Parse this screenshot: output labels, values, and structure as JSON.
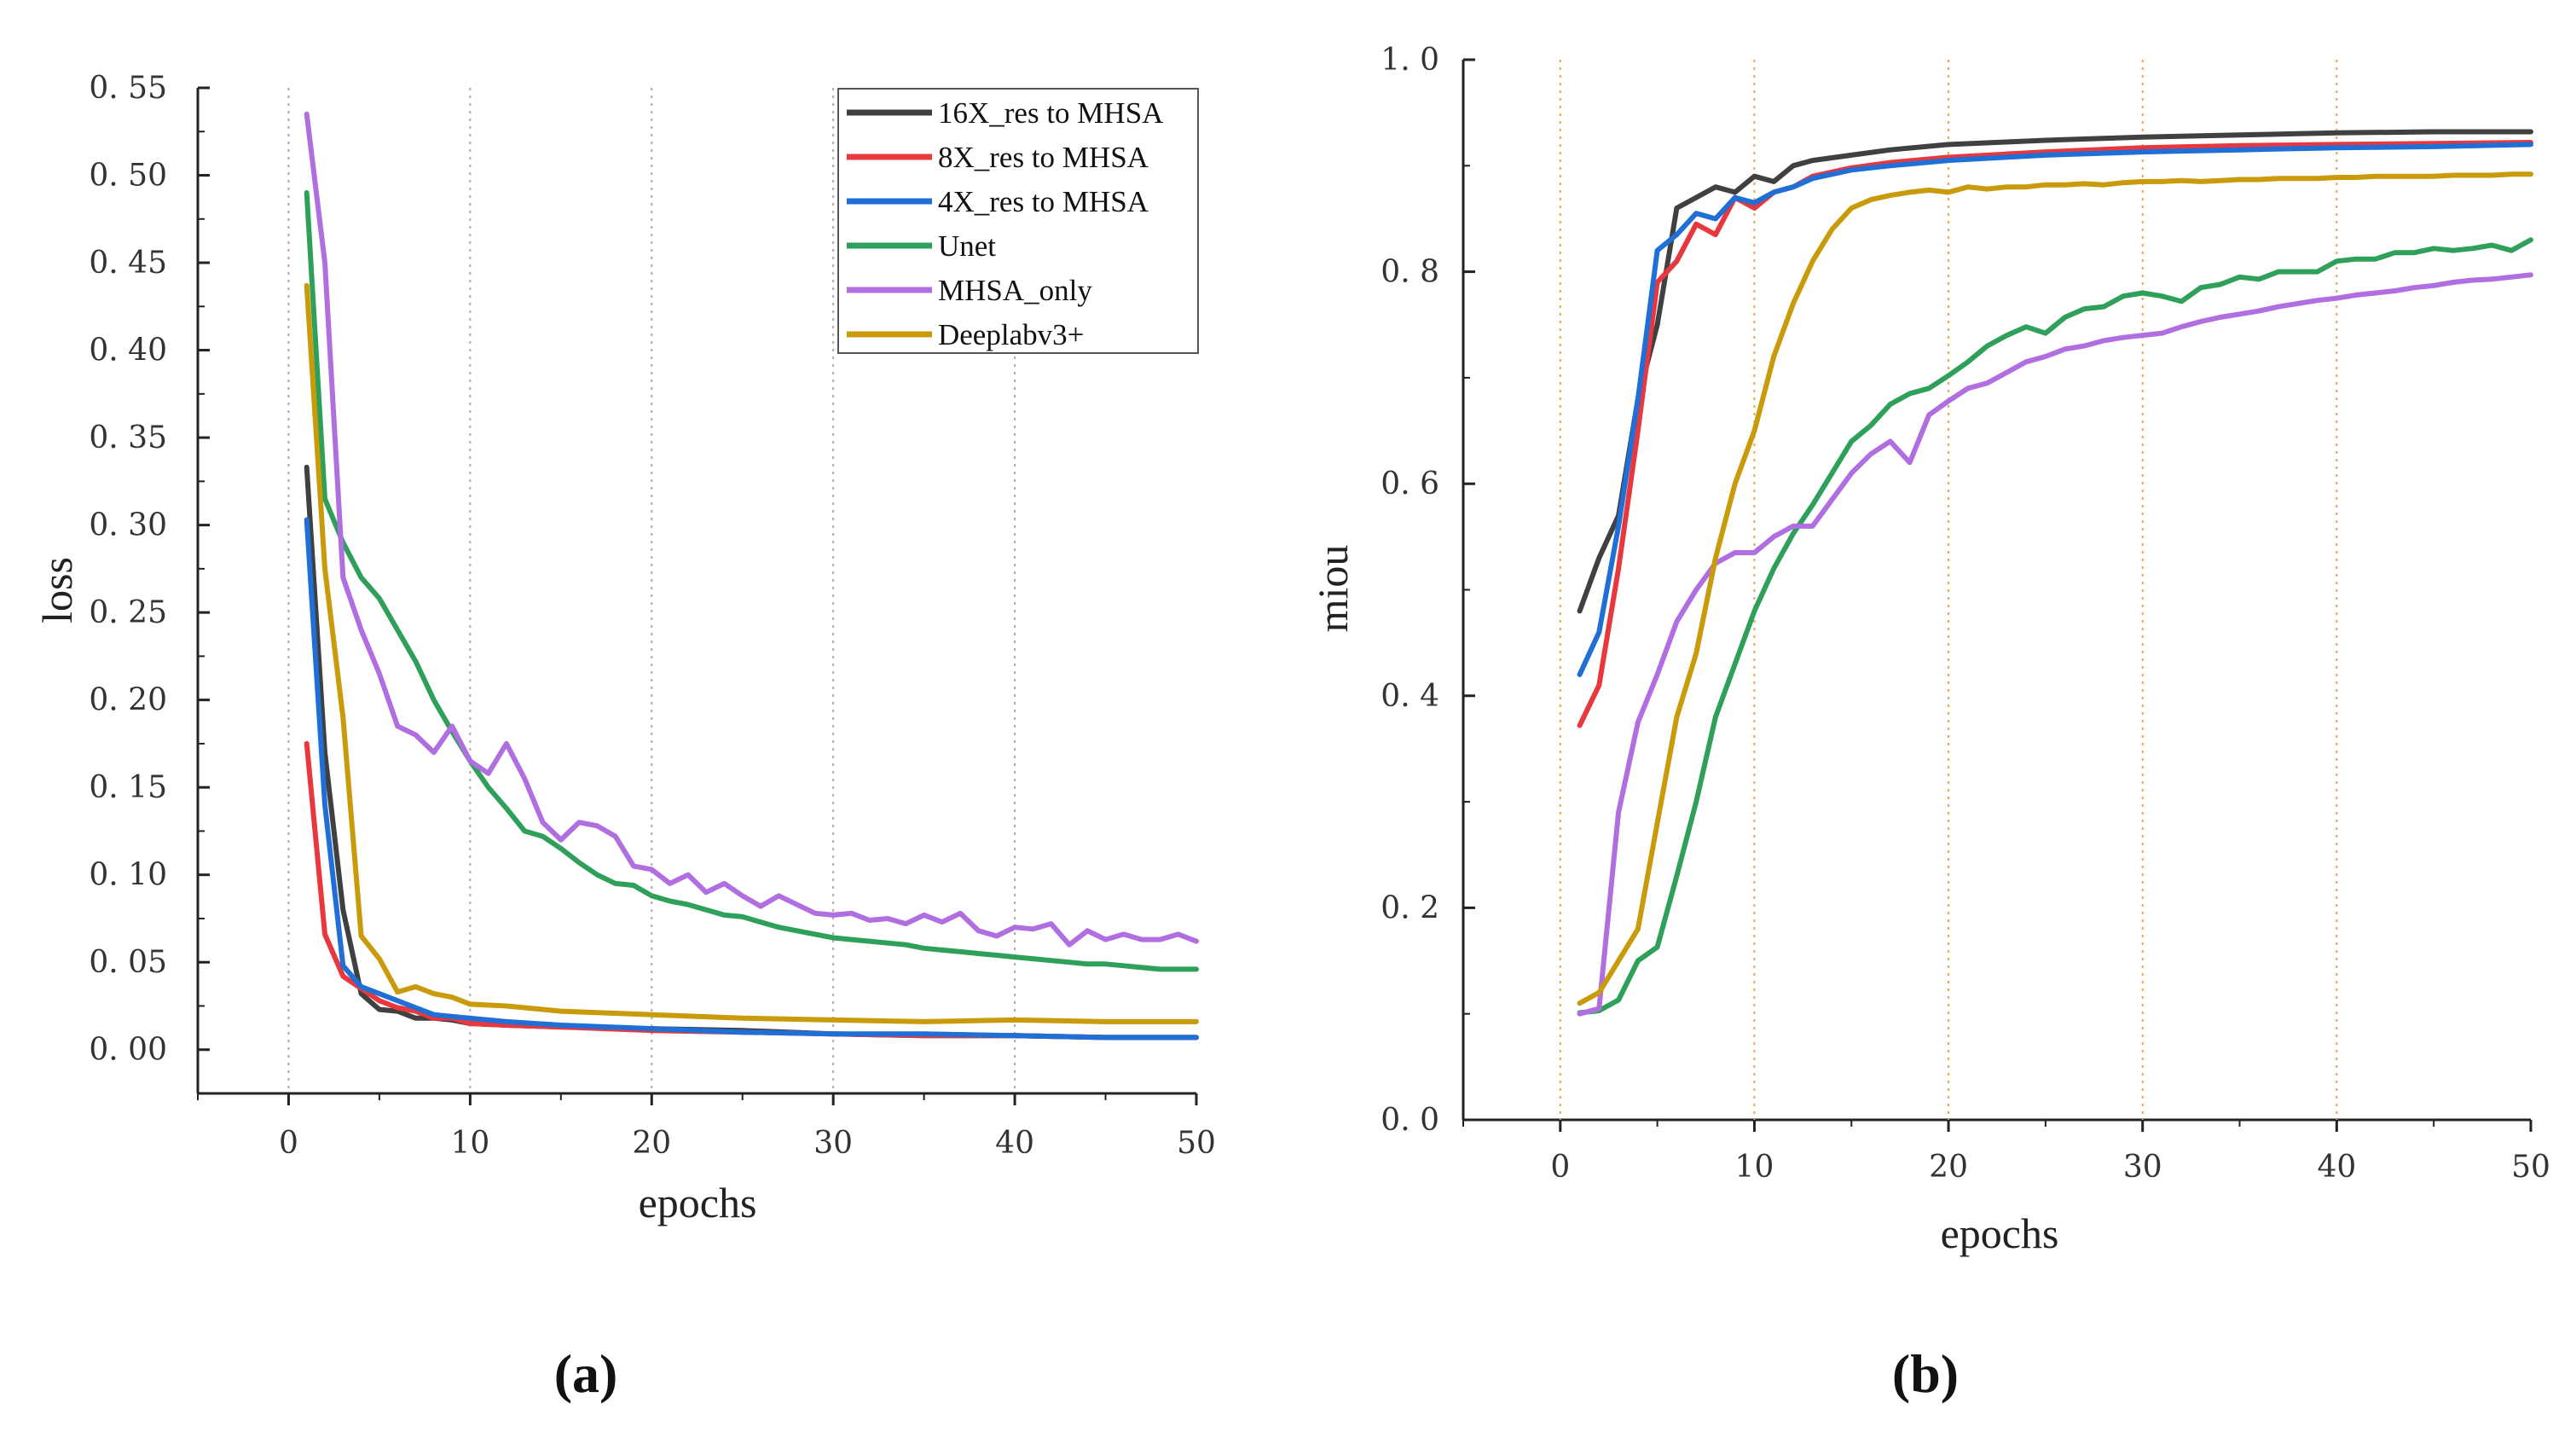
{
  "colors": {
    "16X_res to MHSA": "#404040",
    "8X_res to MHSA": "#e8383d",
    "4X_res to MHSA": "#1f6fd6",
    "Unet": "#2ea05a",
    "MHSA_only": "#b06ee0",
    "Deeplabv3+": "#c99a0a"
  },
  "chart_data": [
    {
      "type": "line",
      "panel_label": "(a)",
      "xlabel": "epochs",
      "ylabel": "loss",
      "xlim": [
        -5,
        50
      ],
      "ylim": [
        -0.025,
        0.55
      ],
      "xticks": [
        0,
        10,
        20,
        30,
        40,
        50
      ],
      "yticks": [
        0.0,
        0.05,
        0.1,
        0.15,
        0.2,
        0.25,
        0.3,
        0.35,
        0.4,
        0.45,
        0.5,
        0.55
      ],
      "ytick_labels": [
        "0. 00",
        "0. 05",
        "0. 10",
        "0. 15",
        "0. 20",
        "0. 25",
        "0. 30",
        "0. 35",
        "0. 40",
        "0. 45",
        "0. 50",
        "0. 55"
      ],
      "vlines": [
        0,
        10,
        20,
        30,
        40
      ],
      "legend_position": "top-right",
      "legend": [
        "16X_res to MHSA",
        "8X_res to MHSA",
        "4X_res to MHSA",
        "Unet",
        "MHSA_only",
        "Deeplabv3+"
      ],
      "series": [
        {
          "name": "16X_res to MHSA",
          "x": [
            1,
            2,
            3,
            4,
            5,
            6,
            7,
            8,
            9,
            10,
            12,
            15,
            20,
            25,
            30,
            35,
            40,
            45,
            50
          ],
          "values": [
            0.333,
            0.17,
            0.08,
            0.032,
            0.023,
            0.022,
            0.018,
            0.018,
            0.017,
            0.015,
            0.014,
            0.013,
            0.012,
            0.011,
            0.009,
            0.008,
            0.008,
            0.007,
            0.007
          ]
        },
        {
          "name": "8X_res to MHSA",
          "x": [
            1,
            2,
            3,
            4,
            5,
            6,
            7,
            8,
            9,
            10,
            12,
            15,
            20,
            25,
            30,
            35,
            40,
            45,
            50
          ],
          "values": [
            0.175,
            0.066,
            0.042,
            0.035,
            0.028,
            0.024,
            0.022,
            0.018,
            0.018,
            0.015,
            0.014,
            0.013,
            0.011,
            0.01,
            0.009,
            0.008,
            0.008,
            0.007,
            0.007
          ]
        },
        {
          "name": "4X_res to MHSA",
          "x": [
            1,
            2,
            3,
            4,
            5,
            6,
            7,
            8,
            9,
            10,
            12,
            15,
            20,
            25,
            30,
            35,
            40,
            45,
            50
          ],
          "values": [
            0.303,
            0.14,
            0.048,
            0.036,
            0.032,
            0.028,
            0.024,
            0.02,
            0.019,
            0.018,
            0.016,
            0.014,
            0.012,
            0.01,
            0.009,
            0.009,
            0.008,
            0.007,
            0.007
          ]
        },
        {
          "name": "Unet",
          "x": [
            1,
            2,
            3,
            4,
            5,
            6,
            7,
            8,
            9,
            10,
            11,
            12,
            13,
            14,
            15,
            16,
            17,
            18,
            19,
            20,
            21,
            22,
            23,
            24,
            25,
            26,
            27,
            28,
            29,
            30,
            31,
            32,
            33,
            34,
            35,
            36,
            37,
            38,
            39,
            40,
            41,
            42,
            43,
            44,
            45,
            46,
            47,
            48,
            49,
            50
          ],
          "values": [
            0.49,
            0.315,
            0.29,
            0.27,
            0.258,
            0.24,
            0.222,
            0.2,
            0.182,
            0.165,
            0.15,
            0.138,
            0.125,
            0.122,
            0.115,
            0.107,
            0.1,
            0.095,
            0.094,
            0.088,
            0.085,
            0.083,
            0.08,
            0.077,
            0.076,
            0.073,
            0.07,
            0.068,
            0.066,
            0.064,
            0.063,
            0.062,
            0.061,
            0.06,
            0.058,
            0.057,
            0.056,
            0.055,
            0.054,
            0.053,
            0.052,
            0.051,
            0.05,
            0.049,
            0.049,
            0.048,
            0.047,
            0.046,
            0.046,
            0.046
          ]
        },
        {
          "name": "MHSA_only",
          "x": [
            1,
            2,
            3,
            4,
            5,
            6,
            7,
            8,
            9,
            10,
            11,
            12,
            13,
            14,
            15,
            16,
            17,
            18,
            19,
            20,
            21,
            22,
            23,
            24,
            25,
            26,
            27,
            28,
            29,
            30,
            31,
            32,
            33,
            34,
            35,
            36,
            37,
            38,
            39,
            40,
            41,
            42,
            43,
            44,
            45,
            46,
            47,
            48,
            49,
            50
          ],
          "values": [
            0.535,
            0.45,
            0.27,
            0.24,
            0.215,
            0.185,
            0.18,
            0.17,
            0.185,
            0.165,
            0.158,
            0.175,
            0.155,
            0.13,
            0.12,
            0.13,
            0.128,
            0.122,
            0.105,
            0.103,
            0.095,
            0.1,
            0.09,
            0.095,
            0.088,
            0.082,
            0.088,
            0.083,
            0.078,
            0.077,
            0.078,
            0.074,
            0.075,
            0.072,
            0.077,
            0.073,
            0.078,
            0.068,
            0.065,
            0.07,
            0.069,
            0.072,
            0.06,
            0.068,
            0.063,
            0.066,
            0.063,
            0.063,
            0.066,
            0.062
          ]
        },
        {
          "name": "Deeplabv3+",
          "x": [
            1,
            2,
            3,
            4,
            5,
            6,
            7,
            8,
            9,
            10,
            12,
            15,
            20,
            25,
            30,
            35,
            40,
            45,
            50
          ],
          "values": [
            0.437,
            0.275,
            0.19,
            0.065,
            0.052,
            0.033,
            0.036,
            0.032,
            0.03,
            0.026,
            0.025,
            0.022,
            0.02,
            0.018,
            0.017,
            0.016,
            0.017,
            0.016,
            0.016
          ]
        }
      ]
    },
    {
      "type": "line",
      "panel_label": "(b)",
      "xlabel": "epochs",
      "ylabel": "miou",
      "xlim": [
        -5,
        50
      ],
      "ylim": [
        0.0,
        1.0
      ],
      "xticks": [
        0,
        10,
        20,
        30,
        40,
        50
      ],
      "yticks": [
        0.0,
        0.2,
        0.4,
        0.6,
        0.8,
        1.0
      ],
      "ytick_labels": [
        "0. 0",
        "0. 2",
        "0. 4",
        "0. 6",
        "0. 8",
        "1. 0"
      ],
      "vlines": [
        0,
        10,
        20,
        30,
        40
      ],
      "series": [
        {
          "name": "16X_res to MHSA",
          "x": [
            1,
            2,
            3,
            4,
            5,
            6,
            7,
            8,
            9,
            10,
            11,
            12,
            13,
            15,
            17,
            20,
            25,
            30,
            35,
            40,
            45,
            50
          ],
          "values": [
            0.48,
            0.53,
            0.57,
            0.68,
            0.75,
            0.86,
            0.87,
            0.88,
            0.875,
            0.89,
            0.885,
            0.9,
            0.905,
            0.91,
            0.915,
            0.92,
            0.924,
            0.927,
            0.929,
            0.931,
            0.932,
            0.932
          ]
        },
        {
          "name": "8X_res to MHSA",
          "x": [
            1,
            2,
            3,
            4,
            5,
            6,
            7,
            8,
            9,
            10,
            11,
            12,
            13,
            15,
            17,
            20,
            25,
            30,
            35,
            40,
            45,
            50
          ],
          "values": [
            0.372,
            0.41,
            0.52,
            0.65,
            0.79,
            0.81,
            0.845,
            0.835,
            0.87,
            0.86,
            0.875,
            0.88,
            0.89,
            0.898,
            0.903,
            0.908,
            0.913,
            0.917,
            0.919,
            0.92,
            0.921,
            0.922
          ]
        },
        {
          "name": "4X_res to MHSA",
          "x": [
            1,
            2,
            3,
            4,
            5,
            6,
            7,
            8,
            9,
            10,
            11,
            12,
            13,
            15,
            17,
            20,
            25,
            30,
            35,
            40,
            45,
            50
          ],
          "values": [
            0.42,
            0.46,
            0.56,
            0.68,
            0.82,
            0.835,
            0.855,
            0.85,
            0.87,
            0.865,
            0.875,
            0.88,
            0.888,
            0.896,
            0.9,
            0.905,
            0.91,
            0.913,
            0.915,
            0.917,
            0.918,
            0.92
          ]
        },
        {
          "name": "Unet",
          "x": [
            1,
            2,
            3,
            4,
            5,
            6,
            7,
            8,
            9,
            10,
            11,
            12,
            13,
            14,
            15,
            16,
            17,
            18,
            19,
            20,
            21,
            22,
            23,
            24,
            25,
            26,
            27,
            28,
            29,
            30,
            31,
            32,
            33,
            34,
            35,
            36,
            37,
            38,
            39,
            40,
            41,
            42,
            43,
            44,
            45,
            46,
            47,
            48,
            49,
            50
          ],
          "values": [
            0.101,
            0.103,
            0.113,
            0.15,
            0.163,
            0.23,
            0.3,
            0.38,
            0.43,
            0.48,
            0.52,
            0.553,
            0.58,
            0.61,
            0.64,
            0.655,
            0.675,
            0.685,
            0.69,
            0.702,
            0.715,
            0.73,
            0.74,
            0.748,
            0.742,
            0.757,
            0.765,
            0.767,
            0.777,
            0.78,
            0.777,
            0.772,
            0.785,
            0.788,
            0.795,
            0.793,
            0.8,
            0.8,
            0.8,
            0.81,
            0.812,
            0.812,
            0.818,
            0.818,
            0.822,
            0.82,
            0.822,
            0.825,
            0.82,
            0.83
          ]
        },
        {
          "name": "MHSA_only",
          "x": [
            1,
            2,
            3,
            4,
            5,
            6,
            7,
            8,
            9,
            10,
            11,
            12,
            13,
            14,
            15,
            16,
            17,
            18,
            19,
            20,
            21,
            22,
            23,
            24,
            25,
            26,
            27,
            28,
            29,
            30,
            31,
            32,
            33,
            34,
            35,
            36,
            37,
            38,
            39,
            40,
            41,
            42,
            43,
            44,
            45,
            46,
            47,
            48,
            49,
            50
          ],
          "values": [
            0.1,
            0.105,
            0.29,
            0.375,
            0.42,
            0.47,
            0.5,
            0.525,
            0.535,
            0.535,
            0.55,
            0.56,
            0.56,
            0.585,
            0.61,
            0.628,
            0.64,
            0.62,
            0.665,
            0.678,
            0.69,
            0.695,
            0.705,
            0.715,
            0.72,
            0.727,
            0.73,
            0.735,
            0.738,
            0.74,
            0.742,
            0.748,
            0.753,
            0.757,
            0.76,
            0.763,
            0.767,
            0.77,
            0.773,
            0.775,
            0.778,
            0.78,
            0.782,
            0.785,
            0.787,
            0.79,
            0.792,
            0.793,
            0.795,
            0.797
          ]
        },
        {
          "name": "Deeplabv3+",
          "x": [
            1,
            2,
            3,
            4,
            5,
            6,
            7,
            8,
            9,
            10,
            11,
            12,
            13,
            14,
            15,
            16,
            17,
            18,
            19,
            20,
            21,
            22,
            23,
            24,
            25,
            26,
            27,
            28,
            29,
            30,
            31,
            32,
            33,
            34,
            35,
            36,
            37,
            38,
            39,
            40,
            41,
            42,
            43,
            44,
            45,
            46,
            47,
            48,
            49,
            50
          ],
          "values": [
            0.11,
            0.12,
            0.15,
            0.18,
            0.28,
            0.38,
            0.44,
            0.53,
            0.6,
            0.65,
            0.72,
            0.77,
            0.81,
            0.84,
            0.86,
            0.868,
            0.872,
            0.875,
            0.877,
            0.875,
            0.88,
            0.878,
            0.88,
            0.88,
            0.882,
            0.882,
            0.883,
            0.882,
            0.884,
            0.885,
            0.885,
            0.886,
            0.885,
            0.886,
            0.887,
            0.887,
            0.888,
            0.888,
            0.888,
            0.889,
            0.889,
            0.89,
            0.89,
            0.89,
            0.89,
            0.891,
            0.891,
            0.891,
            0.892,
            0.892
          ]
        }
      ]
    }
  ]
}
